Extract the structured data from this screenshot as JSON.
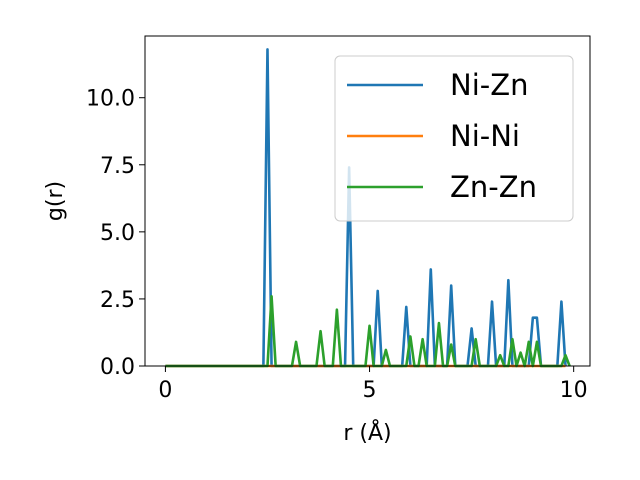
{
  "chart_data": {
    "type": "line",
    "title": "",
    "xlabel": "r (Å)",
    "ylabel": "g(r)",
    "xlim": [
      -0.5,
      10.4
    ],
    "ylim": [
      0.0,
      12.3
    ],
    "xticks": [
      0,
      5,
      10
    ],
    "xtick_labels": [
      "0",
      "5",
      "10"
    ],
    "yticks": [
      0.0,
      2.5,
      5.0,
      7.5,
      10.0
    ],
    "ytick_labels": [
      "0.0",
      "2.5",
      "5.0",
      "7.5",
      "10.0"
    ],
    "grid": false,
    "legend_position": "top-right",
    "series": [
      {
        "name": "Ni-Zn",
        "color": "#1f77b4",
        "x": [
          0.0,
          2.4,
          2.5,
          2.6,
          2.7,
          4.3,
          4.4,
          4.5,
          4.6,
          4.7,
          5.1,
          5.2,
          5.3,
          5.8,
          5.9,
          6.0,
          6.4,
          6.5,
          6.6,
          6.9,
          7.0,
          7.1,
          7.4,
          7.5,
          7.6,
          7.9,
          8.0,
          8.1,
          8.3,
          8.4,
          8.5,
          8.6,
          8.9,
          9.0,
          9.1,
          9.2,
          9.3,
          9.4,
          9.6,
          9.7,
          9.8
        ],
        "y": [
          0.0,
          0.0,
          11.8,
          0.0,
          0.0,
          0.0,
          0.0,
          7.4,
          0.0,
          0.0,
          0.0,
          2.8,
          0.0,
          0.0,
          2.2,
          0.0,
          0.0,
          3.6,
          0.0,
          0.0,
          3.0,
          0.0,
          0.0,
          1.4,
          0.0,
          0.0,
          2.4,
          0.0,
          0.0,
          3.2,
          0.0,
          0.0,
          0.0,
          1.8,
          1.8,
          0.0,
          0.0,
          0.0,
          0.0,
          2.4,
          0.0
        ]
      },
      {
        "name": "Ni-Ni",
        "color": "#ff7f0e",
        "x": [
          0.0,
          9.8
        ],
        "y": [
          0.0,
          0.0
        ]
      },
      {
        "name": "Zn-Zn",
        "color": "#2ca02c",
        "x": [
          0.0,
          2.5,
          2.6,
          2.7,
          2.8,
          3.1,
          3.2,
          3.3,
          3.7,
          3.8,
          3.9,
          4.1,
          4.2,
          4.3,
          4.8,
          4.9,
          5.0,
          5.1,
          5.3,
          5.4,
          5.5,
          5.9,
          6.0,
          6.1,
          6.2,
          6.3,
          6.4,
          6.5,
          6.6,
          6.7,
          6.8,
          6.9,
          7.0,
          7.1,
          7.2,
          7.5,
          7.6,
          7.7,
          8.0,
          8.1,
          8.2,
          8.3,
          8.4,
          8.5,
          8.6,
          8.7,
          8.8,
          8.9,
          9.0,
          9.1,
          9.2,
          9.3,
          9.7,
          9.8,
          9.9
        ],
        "y": [
          0.0,
          0.0,
          2.6,
          0.0,
          0.0,
          0.0,
          0.9,
          0.0,
          0.0,
          1.3,
          0.0,
          0.0,
          2.1,
          0.0,
          0.0,
          0.0,
          1.5,
          0.0,
          0.0,
          0.6,
          0.0,
          0.0,
          1.1,
          0.0,
          0.0,
          1.0,
          0.0,
          0.0,
          0.0,
          1.6,
          0.0,
          0.0,
          0.8,
          0.0,
          0.0,
          0.0,
          1.0,
          0.0,
          0.0,
          0.0,
          0.4,
          0.0,
          0.0,
          1.0,
          0.0,
          0.5,
          0.0,
          0.9,
          0.0,
          0.9,
          0.0,
          0.0,
          0.0,
          0.4,
          0.0
        ]
      }
    ]
  }
}
